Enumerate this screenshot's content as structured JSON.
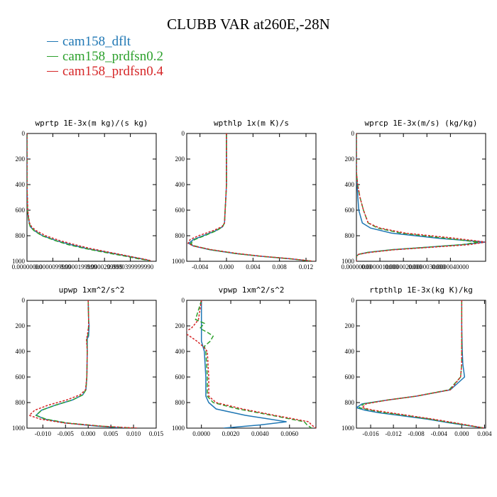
{
  "title": "CLUBB VAR at260E,-28N",
  "legend": [
    {
      "label": "cam158_dflt",
      "color": "#1f77b4"
    },
    {
      "label": "cam158_prdfsn0.2",
      "color": "#2ca02c"
    },
    {
      "label": "cam158_prdfsn0.4",
      "color": "#d62728"
    }
  ],
  "chart_data": [
    {
      "type": "line",
      "title": "wprtp  1E-3x(m kg)/(s kg)",
      "xlim": [
        0,
        4.99999999e-05
      ],
      "ylim": [
        0,
        1000
      ],
      "xticks": [
        0,
        1e-05,
        2e-05,
        3e-05,
        4e-05
      ],
      "xtick_labels": [
        "0.00000000",
        "0.0000099999",
        "0.0000199999",
        "0.0000299999",
        "0.0000399999990"
      ],
      "yticks": [
        0,
        200,
        400,
        600,
        800,
        1000
      ],
      "y": [
        0,
        200,
        400,
        600,
        650,
        700,
        730,
        760,
        800,
        840,
        870,
        900,
        930,
        960,
        980,
        990,
        1000
      ],
      "series": [
        {
          "name": "cam158_dflt",
          "values": [
            0,
            0,
            0,
            2e-07,
            5e-07,
            9e-07,
            1.3e-06,
            2.8e-06,
            6e-06,
            1.15e-05,
            1.7e-05,
            2.3e-05,
            3.1e-05,
            3.9e-05,
            4.4e-05,
            4.65e-05,
            4.8e-05
          ]
        },
        {
          "name": "cam158_prdfsn0.2",
          "values": [
            0,
            0,
            0,
            2e-07,
            5e-07,
            8e-07,
            1.3e-06,
            2.7e-06,
            5.8e-06,
            1.12e-05,
            1.6e-05,
            2.25e-05,
            3e-05,
            3.8e-05,
            4.3e-05,
            4.6e-05,
            4.78e-05
          ]
        },
        {
          "name": "cam158_prdfsn0.4",
          "values": [
            0,
            0,
            0,
            3e-07,
            6e-07,
            1e-06,
            1.8e-06,
            3.5e-06,
            7.2e-06,
            1.3e-05,
            1.85e-05,
            2.45e-05,
            3.2e-05,
            3.95e-05,
            4.45e-05,
            4.7e-05,
            4.85e-05
          ]
        }
      ]
    },
    {
      "type": "line",
      "title": "wpthlp  1x(m K)/s",
      "xlim": [
        -0.006,
        0.0135
      ],
      "ylim": [
        0,
        1000
      ],
      "xticks": [
        -0.004,
        0,
        0.004,
        0.008,
        0.012
      ],
      "xtick_labels": [
        "-0.004",
        "0.000",
        "0.004",
        "0.008",
        "0.012"
      ],
      "yticks": [
        0,
        200,
        400,
        600,
        800,
        1000
      ],
      "y": [
        0,
        200,
        400,
        500,
        600,
        700,
        730,
        760,
        800,
        830,
        860,
        880,
        910,
        940,
        960,
        980,
        1000
      ],
      "series": [
        {
          "name": "cam158_dflt",
          "values": [
            0,
            0,
            0,
            -0.0001,
            -0.0002,
            -0.0003,
            -0.0006,
            -0.0016,
            -0.0035,
            -0.005,
            -0.0057,
            -0.005,
            -0.0025,
            0.0015,
            0.005,
            0.0095,
            0.013
          ]
        },
        {
          "name": "cam158_prdfsn0.2",
          "values": [
            0,
            0,
            0,
            -0.0001,
            -0.0002,
            -0.0003,
            -0.0006,
            -0.0015,
            -0.0033,
            -0.0048,
            -0.0054,
            -0.0048,
            -0.0024,
            0.0015,
            0.005,
            0.0095,
            0.013
          ]
        },
        {
          "name": "cam158_prdfsn0.4",
          "values": [
            0,
            0,
            0,
            -0.0001,
            -0.0002,
            -0.0003,
            -0.0007,
            -0.002,
            -0.0042,
            -0.0055,
            -0.0058,
            -0.005,
            -0.0022,
            0.0018,
            0.0052,
            0.0097,
            0.0132
          ]
        }
      ]
    },
    {
      "type": "line",
      "title": "wprcp  1E-3x(m/s) (kg/kg)",
      "xlim": [
        0,
        5.5e-06
      ],
      "ylim": [
        0,
        1000
      ],
      "xticks": [
        0,
        1e-06,
        2e-06,
        3e-06,
        4e-06
      ],
      "xtick_labels": [
        "0.00000000",
        "0.0000010000",
        "0.0000020000",
        "0.0000030000",
        "0.0000040000"
      ],
      "yticks": [
        0,
        200,
        400,
        600,
        800,
        1000
      ],
      "y": [
        0,
        300,
        400,
        500,
        600,
        700,
        740,
        780,
        820,
        850,
        870,
        890,
        910,
        930,
        945,
        960,
        1000
      ],
      "series": [
        {
          "name": "cam158_dflt",
          "values": [
            0,
            0,
            3e-08,
            6e-08,
            1e-07,
            2.5e-07,
            6e-07,
            1.5e-06,
            3.5e-06,
            5.5e-06,
            4.5e-06,
            3e-06,
            1.5e-06,
            5e-07,
            1e-07,
            0,
            0
          ]
        },
        {
          "name": "cam158_prdfsn0.2",
          "values": [
            0,
            0,
            5e-08,
            1.5e-07,
            3e-07,
            5e-07,
            9e-07,
            1.9e-06,
            3.8e-06,
            5.2e-06,
            4.5e-06,
            3e-06,
            1.5e-06,
            5e-07,
            1e-07,
            0,
            0
          ]
        },
        {
          "name": "cam158_prdfsn0.4",
          "values": [
            0,
            0,
            5e-08,
            1.5e-07,
            3e-07,
            5e-07,
            1e-06,
            2.1e-06,
            4.2e-06,
            5.5e-06,
            4.8e-06,
            3.2e-06,
            1.6e-06,
            6e-07,
            1e-07,
            0,
            0
          ]
        }
      ]
    },
    {
      "type": "line",
      "title": "upwp  1xm^2/s^2",
      "xlim": [
        -0.0135,
        0.015
      ],
      "ylim": [
        0,
        1000
      ],
      "xticks": [
        -0.01,
        -0.005,
        0,
        0.005,
        0.01,
        0.015
      ],
      "xtick_labels": [
        "-0.010",
        "-0.005",
        "0.000",
        "0.005",
        "0.010",
        "0.015"
      ],
      "yticks": [
        0,
        200,
        400,
        600,
        800,
        1000
      ],
      "y": [
        0,
        150,
        200,
        280,
        300,
        400,
        600,
        700,
        740,
        780,
        820,
        860,
        900,
        930,
        960,
        985,
        1000
      ],
      "series": [
        {
          "name": "cam158_dflt",
          "values": [
            0,
            0.0001,
            0.0002,
            0.0001,
            -0.0002,
            -0.0002,
            -0.0003,
            -0.0005,
            -0.0012,
            -0.0035,
            -0.0072,
            -0.0103,
            -0.0115,
            -0.0095,
            -0.005,
            0.002,
            0.008
          ]
        },
        {
          "name": "cam158_prdfsn0.2",
          "values": [
            0,
            0.0001,
            0.0001,
            -0.0001,
            -0.0003,
            -0.0002,
            -0.0003,
            -0.0005,
            -0.0012,
            -0.0035,
            -0.0072,
            -0.0103,
            -0.0115,
            -0.0093,
            -0.0045,
            0.003,
            0.01
          ]
        },
        {
          "name": "cam158_prdfsn0.4",
          "values": [
            0,
            0.0001,
            0.0001,
            -0.0002,
            -0.0004,
            -0.0002,
            -0.0003,
            -0.0006,
            -0.0018,
            -0.0048,
            -0.0088,
            -0.0118,
            -0.013,
            -0.0105,
            -0.0052,
            0.003,
            0.011
          ]
        }
      ]
    },
    {
      "type": "line",
      "title": "vpwp  1xm^2/s^2",
      "xlim": [
        -0.001,
        0.0078
      ],
      "ylim": [
        0,
        1000
      ],
      "xticks": [
        0,
        0.002,
        0.004,
        0.006
      ],
      "xtick_labels": [
        "0.0000",
        "0.0020",
        "0.0040",
        "0.0060"
      ],
      "yticks": [
        0,
        200,
        400,
        600,
        800,
        1000
      ],
      "y": [
        0,
        150,
        180,
        220,
        250,
        280,
        320,
        360,
        400,
        600,
        750,
        800,
        850,
        900,
        950,
        975,
        1000
      ],
      "series": [
        {
          "name": "cam158_dflt",
          "values": [
            0,
            0,
            0,
            0,
            0,
            0,
            0,
            0.0001,
            0.0002,
            0.0003,
            0.0003,
            0.0005,
            0.001,
            0.003,
            0.0058,
            0.004,
            0.0015
          ]
        },
        {
          "name": "cam158_prdfsn0.2",
          "values": [
            0,
            -0.0004,
            0.0002,
            -0.0001,
            0.0004,
            0.0008,
            0.0006,
            0.0002,
            0.0003,
            0.0004,
            0.0004,
            0.0008,
            0.0025,
            0.0048,
            0.007,
            0.0072,
            0.0075
          ]
        },
        {
          "name": "cam158_prdfsn0.4",
          "values": [
            0,
            -0.0002,
            -0.0004,
            -0.0007,
            -0.0012,
            -0.0008,
            -0.0003,
            0.0001,
            0.0004,
            0.0005,
            0.0005,
            0.001,
            0.0028,
            0.005,
            0.0073,
            0.0075,
            0.0078
          ]
        }
      ]
    },
    {
      "type": "line",
      "title": "rtpthlp  1E-3x(kg K)/kg",
      "xlim": [
        -0.0185,
        0.0042
      ],
      "ylim": [
        0,
        1000
      ],
      "xticks": [
        -0.016,
        -0.012,
        -0.008,
        -0.004,
        0,
        0.004
      ],
      "xtick_labels": [
        "-0.016",
        "-0.012",
        "-0.008",
        "-0.004",
        "0.000",
        "0.004"
      ],
      "yticks": [
        0,
        200,
        400,
        600,
        800,
        1000
      ],
      "y": [
        0,
        200,
        400,
        500,
        600,
        700,
        750,
        780,
        810,
        840,
        860,
        880,
        900,
        930,
        960,
        1000
      ],
      "series": [
        {
          "name": "cam158_dflt",
          "values": [
            0,
            0,
            0.0001,
            0.0002,
            0.0005,
            -0.002,
            -0.008,
            -0.013,
            -0.0175,
            -0.0185,
            -0.017,
            -0.0145,
            -0.011,
            -0.006,
            -0.002,
            0.004
          ]
        },
        {
          "name": "cam158_prdfsn0.2",
          "values": [
            0,
            0,
            0,
            0,
            -0.0002,
            -0.0022,
            -0.008,
            -0.013,
            -0.0172,
            -0.018,
            -0.016,
            -0.0135,
            -0.01,
            -0.0055,
            -0.0015,
            0.004
          ]
        },
        {
          "name": "cam158_prdfsn0.4",
          "values": [
            0,
            0,
            0,
            0,
            -0.0002,
            -0.002,
            -0.008,
            -0.013,
            -0.0168,
            -0.0175,
            -0.0155,
            -0.0125,
            -0.0095,
            -0.005,
            -0.001,
            0.004
          ]
        }
      ]
    }
  ]
}
